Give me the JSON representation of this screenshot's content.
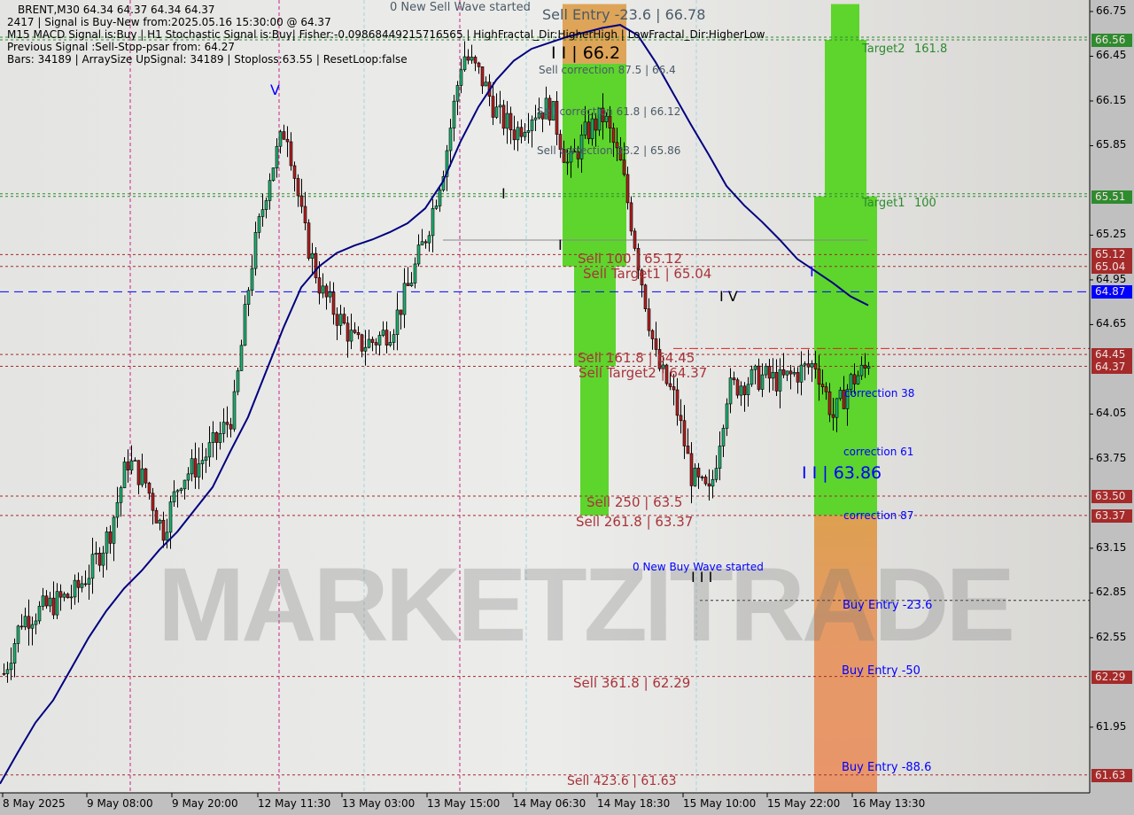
{
  "header": {
    "symbol_line": "BRENT,M30  64.34 64.37 64.34 64.37",
    "signal_line": "2417 | Signal is Buy-New from:2025.05.16 15:30:00 @ 64.37",
    "indicators_line": "M15 MACD Signal is:Buy | H1 Stochastic Signal is:Buy| Fisher:-0.09868449215716565 | HighFractal_Dir:HigherHigh | LowFractal_Dir:HigherLow",
    "previous_line": "Previous Signal :Sell-Stop-psar from: 64.27",
    "bars_line": "Bars: 34189 | ArraySize UpSignal: 34189 | Stoploss:63.55 | ResetLoop:false"
  },
  "watermark": "MARKETZITRADE",
  "annotations": {
    "sell_wave": "0 New Sell Wave started",
    "sell_entry": "Sell Entry -23.6 | 66.78",
    "wave_ii_top": "I I | 66.2",
    "sell_corr_875": "Sell correction 87.5 | 66.4",
    "sell_corr_618": "Sell correction 61.8 | 66.12",
    "sell_corr_382": "Sell correction 38.2 | 65.86",
    "sell_100": "Sell 100 | 65.12",
    "sell_target1": "Sell Target1 | 65.04",
    "sell_1618": "Sell 161.8 | 64.45",
    "sell_target2": "Sell Target2 | 64.37",
    "sell_250": "Sell  250 | 63.5",
    "sell_2618": "Sell  261.8 | 63.37",
    "sell_3618": "Sell  361.8 | 62.29",
    "sell_4236": "Sell  423.6 | 61.63",
    "buy_wave": "0 New Buy Wave started",
    "corr_38": "correction 38",
    "corr_61": "correction 61",
    "wave_ii_bottom": "I I | 63.86",
    "corr_87": "correction 87",
    "buy_entry_236": "Buy Entry -23.6",
    "buy_entry_50": "Buy Entry -50",
    "buy_entry_886": "Buy Entry -88.6",
    "target2": "Target2",
    "target2_level": "161.8",
    "target1": "Target1",
    "target1_level": "100",
    "wave_v": "V",
    "wave_iv": "I V",
    "wave_i_a": "I",
    "wave_i_b": "I",
    "wave_iii": "I I I",
    "wave_i_c": "I"
  },
  "chart_data": {
    "type": "candlestick",
    "title": "BRENT,M30",
    "ylim": [
      61.5,
      66.8
    ],
    "y_ticks": [
      "66.75",
      "66.45",
      "66.15",
      "65.85",
      "65.25",
      "64.95",
      "64.65",
      "64.05",
      "63.75",
      "63.15",
      "62.85",
      "62.55",
      "61.95"
    ],
    "x_ticks": [
      "8 May 2025",
      "9 May 08:00",
      "9 May 20:00",
      "12 May 11:30",
      "13 May 03:00",
      "13 May 15:00",
      "14 May 06:30",
      "14 May 18:30",
      "15 May 10:00",
      "15 May 22:00",
      "16 May 13:30"
    ],
    "close_approx": [
      62.31,
      62.67,
      62.73,
      62.79,
      62.85,
      63.02,
      63.26,
      63.74,
      63.6,
      63.26,
      63.62,
      63.71,
      63.86,
      64.06,
      65.04,
      65.64,
      65.99,
      65.28,
      64.87,
      64.69,
      64.51,
      64.54,
      64.63,
      64.93,
      65.28,
      65.76,
      66.47,
      66.32,
      66.05,
      65.94,
      66.08,
      66.11,
      65.7,
      65.94,
      66.05,
      65.7,
      65.04,
      64.39,
      64.15,
      63.62,
      63.5,
      64.21,
      64.27,
      64.3,
      64.27,
      64.33,
      64.39,
      64.03,
      64.27,
      64.37
    ],
    "moving_average": [
      61.57,
      61.78,
      61.98,
      62.13,
      62.34,
      62.55,
      62.73,
      62.88,
      63.0,
      63.14,
      63.26,
      63.41,
      63.56,
      63.8,
      64.03,
      64.33,
      64.63,
      64.9,
      65.04,
      65.13,
      65.18,
      65.22,
      65.27,
      65.33,
      65.43,
      65.61,
      65.88,
      66.11,
      66.29,
      66.42,
      66.5,
      66.54,
      66.58,
      66.61,
      66.64,
      66.66,
      66.59,
      66.41,
      66.2,
      65.99,
      65.79,
      65.58,
      65.45,
      65.34,
      65.22,
      65.09,
      65.01,
      64.93,
      64.84,
      64.78
    ],
    "levels": [
      {
        "value": "66.56",
        "color": "#2e8b2e",
        "style": "green-dashed"
      },
      {
        "value": "65.51",
        "color": "#2e8b2e",
        "style": "green-dashed"
      },
      {
        "value": "65.12",
        "color": "#a52a2a",
        "style": "red-dashed"
      },
      {
        "value": "65.04",
        "color": "#a52a2a",
        "style": "red-dashed"
      },
      {
        "value": "64.87",
        "color": "#0000ff",
        "style": "blue-dashed"
      },
      {
        "value": "64.45",
        "color": "#a52a2a",
        "style": "red-dashed"
      },
      {
        "value": "64.37",
        "color": "#a52a2a",
        "style": "red-dashed"
      },
      {
        "value": "63.50",
        "color": "#a52a2a",
        "style": "red-dashed"
      },
      {
        "value": "63.37",
        "color": "#a52a2a",
        "style": "red-dashed"
      },
      {
        "value": "62.29",
        "color": "#a52a2a",
        "style": "red-dashed"
      },
      {
        "value": "61.63",
        "color": "#a52a2a",
        "style": "red-dashed"
      }
    ],
    "zones": [
      {
        "kind": "sell-entry",
        "color": "#dda050",
        "from": 66.4,
        "to": 66.8
      },
      {
        "kind": "sell-targets",
        "color": "#55d422",
        "from": 63.37,
        "to": 66.4
      },
      {
        "kind": "buy-targets",
        "color": "#55d422",
        "from": 63.37,
        "to": 66.8
      },
      {
        "kind": "buy-entry",
        "color": "#e59a66",
        "from": 61.5,
        "to": 63.37
      }
    ],
    "colors": {
      "bull": "#20b070",
      "bear": "#b02020",
      "ma": "#000080",
      "background": "#dedede"
    }
  }
}
